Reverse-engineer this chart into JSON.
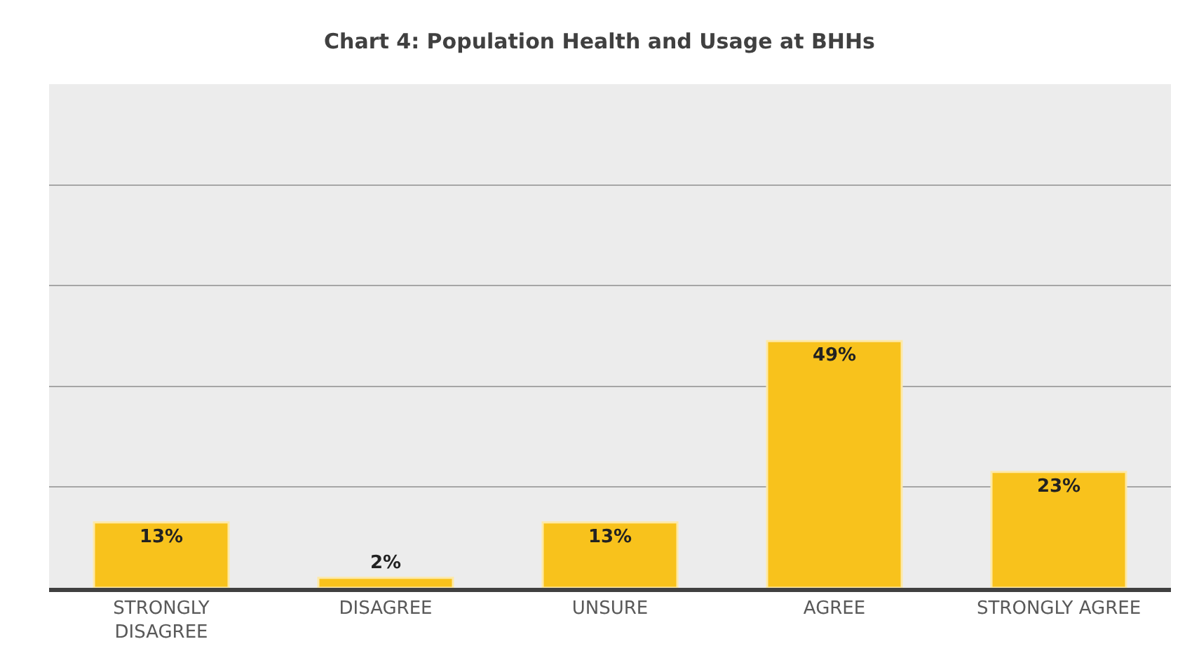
{
  "chart_data": {
    "type": "bar",
    "title": "Chart 4: Population Health and Usage at BHHs",
    "categories": [
      "STRONGLY DISAGREE",
      "DISAGREE",
      "UNSURE",
      "AGREE",
      "STRONGLY AGREE"
    ],
    "values": [
      13,
      2,
      13,
      49,
      23
    ],
    "value_labels": [
      "13%",
      "2%",
      "13%",
      "49%",
      "23%"
    ],
    "color": "#f8c21c",
    "ylim": [
      0,
      100
    ],
    "yticks": [
      {
        "value": 0,
        "label": null
      },
      {
        "value": 20,
        "label": null
      },
      {
        "value": 40,
        "label": null
      },
      {
        "value": 60,
        "label": null
      },
      {
        "value": 80,
        "label": null
      }
    ],
    "grid": "y",
    "tick_labels": "x",
    "legend": false
  }
}
